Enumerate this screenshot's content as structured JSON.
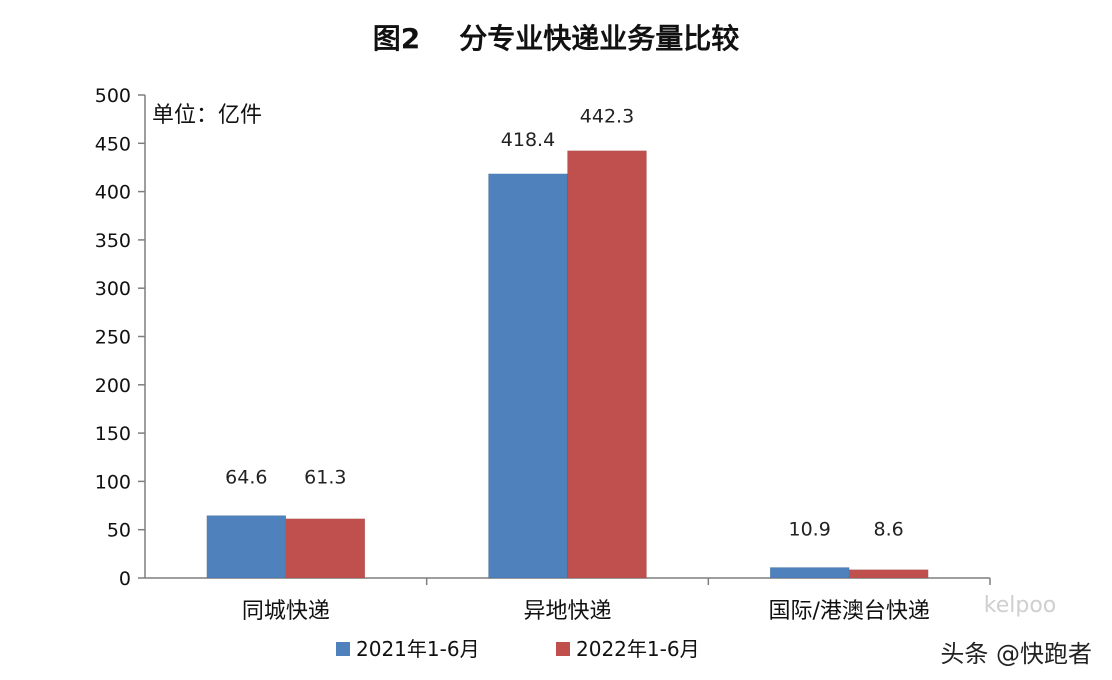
{
  "chart_data": {
    "type": "bar",
    "title": "图2    分专业快递业务量比较",
    "unit_label": "单位：亿件",
    "categories": [
      "同城快递",
      "异地快递",
      "国际/港澳台快递"
    ],
    "series": [
      {
        "name": "2021年1-6月",
        "color": "#4F81BD",
        "values": [
          64.6,
          418.4,
          10.9
        ],
        "labels": [
          "64.6",
          "418.4",
          "10.9"
        ]
      },
      {
        "name": "2022年1-6月",
        "color": "#C0504D",
        "values": [
          61.3,
          442.3,
          8.6
        ],
        "labels": [
          "61.3",
          "442.3",
          "8.6"
        ]
      }
    ],
    "ylim": [
      0,
      500
    ],
    "yticks": [
      "0",
      "50",
      "100",
      "150",
      "200",
      "250",
      "300",
      "350",
      "400",
      "450",
      "500"
    ],
    "grid": false,
    "legend_position": "bottom"
  },
  "watermark": {
    "text": "头条 @快跑者",
    "faint_text": "kelpoo"
  }
}
